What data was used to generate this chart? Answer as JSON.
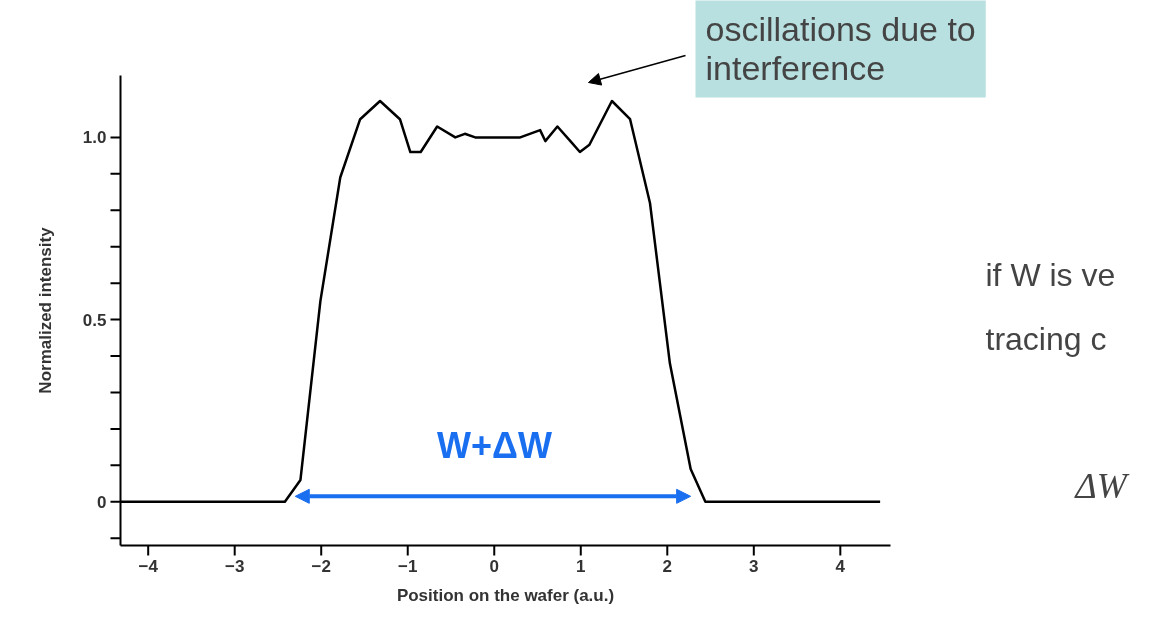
{
  "chart_data": {
    "type": "line",
    "xlabel": "Position on the wafer (a.u.)",
    "ylabel": "Normalized intensity",
    "x": [
      -4.32,
      -2.42,
      -2.24,
      -2.01,
      -1.78,
      -1.55,
      -1.32,
      -1.09,
      -0.97,
      -0.85,
      -0.66,
      -0.45,
      -0.34,
      -0.22,
      0.3,
      0.53,
      0.59,
      0.73,
      0.88,
      0.99,
      1.1,
      1.36,
      1.57,
      1.8,
      2.03,
      2.27,
      2.44,
      4.46
    ],
    "values": [
      0,
      0,
      0.06,
      0.55,
      0.89,
      1.05,
      1.1,
      1.05,
      0.96,
      0.96,
      1.03,
      1.0,
      1.01,
      1.0,
      1.0,
      1.02,
      0.99,
      1.03,
      0.99,
      0.96,
      0.98,
      1.1,
      1.05,
      0.82,
      0.38,
      0.09,
      0,
      0
    ],
    "color": "#000000",
    "xlim": [
      -4.32,
      4.58
    ],
    "ylim": [
      -0.12,
      1.17
    ],
    "xticks": [
      {
        "value": -4,
        "label": "−4"
      },
      {
        "value": -3,
        "label": "−3"
      },
      {
        "value": -2,
        "label": "−2"
      },
      {
        "value": -1,
        "label": "−1"
      },
      0,
      1,
      2,
      3,
      4
    ],
    "yticks": [
      {
        "value": -0.1,
        "label": null
      },
      0,
      {
        "value": 0.1,
        "label": null
      },
      {
        "value": 0.2,
        "label": null
      },
      {
        "value": 0.3,
        "label": null
      },
      {
        "value": 0.4,
        "label": null
      },
      0.5,
      {
        "value": 0.6,
        "label": null
      },
      {
        "value": 0.7,
        "label": null
      },
      {
        "value": 0.8,
        "label": null
      },
      {
        "value": 0.9,
        "label": null
      },
      {
        "value": 1,
        "label": "1.0"
      }
    ],
    "annotations": [
      "oscillations due to\ninterference",
      "W+ΔW",
      "if W is ve",
      "tracing c",
      "ΔW"
    ]
  }
}
